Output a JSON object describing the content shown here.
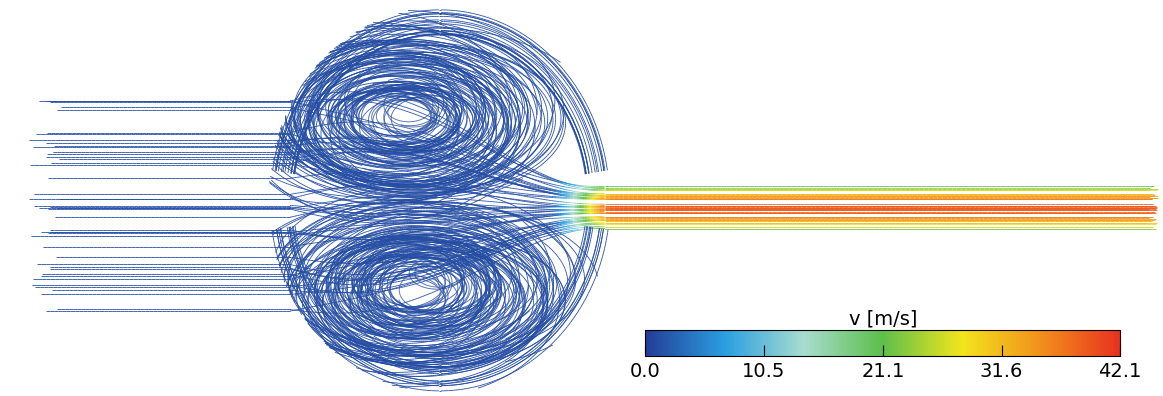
{
  "chart_data": {
    "type": "streamline",
    "tick_labels": false,
    "colorbar": {
      "label": "v [m/s]",
      "range": [
        0,
        42.1
      ],
      "ticks": [
        {
          "value": 0,
          "label": "0.0"
        },
        10.5,
        21.1,
        31.6,
        42.1
      ]
    }
  }
}
